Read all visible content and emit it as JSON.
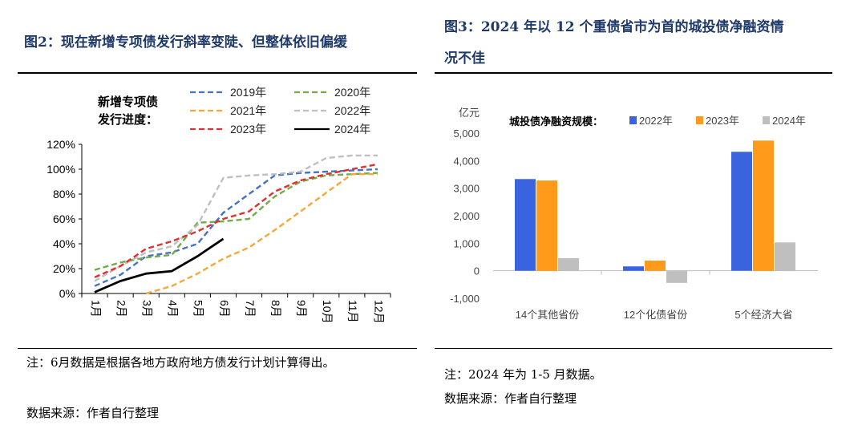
{
  "left": {
    "title": "图2：现在新增专项债发行斜率变陡、但整体依旧偏缓",
    "legend_title": [
      "新增专项债",
      "发行进度："
    ],
    "note": "注：6月数据是根据各地方政府地方债发行计划计算得出。",
    "source": "数据来源：作者自行整理"
  },
  "right": {
    "title_line1": "图3：2024 年以 12 个重债省市为首的城投债净融资情",
    "title_line2": "况不佳",
    "unit": "亿元",
    "legend_title": "城投债净融资规模：",
    "note": "注：2024 年为 1-5 月数据。",
    "source": "数据来源：作者自行整理"
  },
  "chart_data": [
    {
      "type": "line",
      "title": "新增专项债发行进度",
      "categories": [
        "1月",
        "2月",
        "3月",
        "4月",
        "5月",
        "6月",
        "7月",
        "8月",
        "9月",
        "10月",
        "11月",
        "12月"
      ],
      "ylim": [
        0,
        120
      ],
      "yticks": [
        0,
        20,
        40,
        60,
        80,
        100,
        120
      ],
      "ytick_labels": [
        "0%",
        "20%",
        "40%",
        "60%",
        "80%",
        "100%",
        "120%"
      ],
      "legend_placement": "top",
      "series": [
        {
          "name": "2019年",
          "color": "#4472c4",
          "dash": "dashed",
          "values": [
            6,
            15,
            30,
            33,
            40,
            65,
            80,
            95,
            97,
            98,
            99,
            100
          ]
        },
        {
          "name": "2020年",
          "color": "#70ad47",
          "dash": "dashed",
          "values": [
            19,
            25,
            29,
            31,
            57,
            58,
            60,
            78,
            90,
            95,
            96,
            97
          ]
        },
        {
          "name": "2021年",
          "color": "#f4a83a",
          "dash": "dashed",
          "values": [
            null,
            null,
            0,
            6,
            16,
            28,
            37,
            51,
            66,
            81,
            96,
            96
          ]
        },
        {
          "name": "2022年",
          "color": "#bfbfbf",
          "dash": "dashed",
          "values": [
            10,
            22,
            33,
            38,
            55,
            93,
            95,
            96,
            98,
            109,
            111,
            111
          ]
        },
        {
          "name": "2023年",
          "color": "#e03030",
          "dash": "dashed",
          "values": [
            13,
            22,
            36,
            42,
            50,
            60,
            66,
            82,
            91,
            96,
            100,
            104
          ]
        },
        {
          "name": "2024年",
          "color": "#000000",
          "dash": "solid",
          "values": [
            1,
            10,
            16,
            18,
            30,
            44,
            null,
            null,
            null,
            null,
            null,
            null
          ]
        }
      ]
    },
    {
      "type": "bar",
      "title": "城投债净融资规模",
      "ylabel": "亿元",
      "categories": [
        "14个其他省份",
        "12个化债省份",
        "5个经济大省"
      ],
      "ylim": [
        -1000,
        5000
      ],
      "yticks": [
        -1000,
        0,
        1000,
        2000,
        3000,
        4000,
        5000
      ],
      "ytick_labels": [
        "-1,000",
        "0",
        "1,000",
        "2,000",
        "3,000",
        "4,000",
        "5,000"
      ],
      "legend_placement": "top",
      "series": [
        {
          "name": "2022年",
          "color": "#3a63e0",
          "values": [
            3330,
            160,
            4320
          ]
        },
        {
          "name": "2023年",
          "color": "#ff9a1a",
          "values": [
            3280,
            370,
            4730
          ]
        },
        {
          "name": "2024年",
          "color": "#bfbfbf",
          "values": [
            460,
            -440,
            1030
          ]
        }
      ]
    }
  ]
}
